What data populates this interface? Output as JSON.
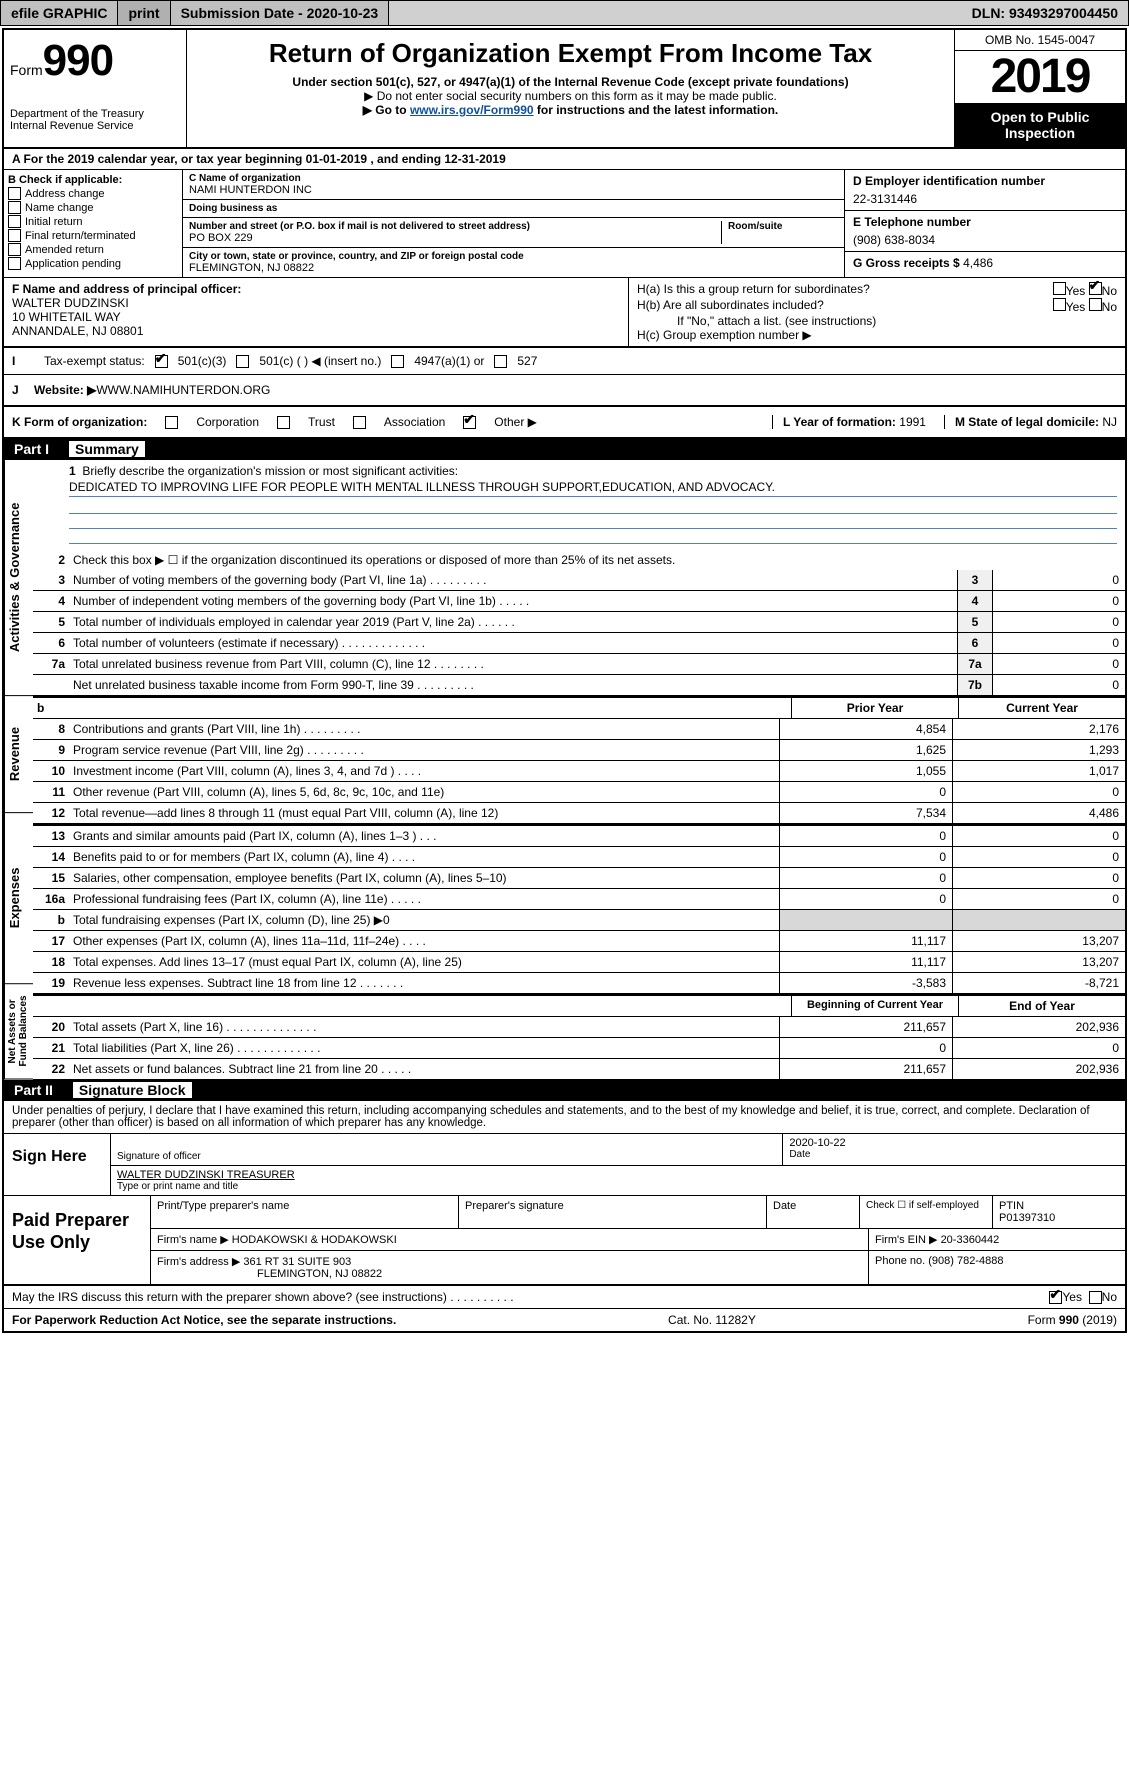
{
  "toolbar": {
    "efile": "efile GRAPHIC",
    "print": "print",
    "submission": "Submission Date - 2020-10-23",
    "dln": "DLN: 93493297004450"
  },
  "header": {
    "form_label": "Form",
    "form_num": "990",
    "dept": "Department of the Treasury",
    "irs": "Internal Revenue Service",
    "title": "Return of Organization Exempt From Income Tax",
    "sub1": "Under section 501(c), 527, or 4947(a)(1) of the Internal Revenue Code (except private foundations)",
    "sub2": "▶ Do not enter social security numbers on this form as it may be made public.",
    "sub3_pre": "▶ Go to ",
    "sub3_link": "www.irs.gov/Form990",
    "sub3_post": " for instructions and the latest information.",
    "omb": "OMB No. 1545-0047",
    "year": "2019",
    "open": "Open to Public Inspection"
  },
  "line_a": "A For the 2019 calendar year, or tax year beginning 01-01-2019    , and ending 12-31-2019",
  "block_b": {
    "label": "B Check if applicable:",
    "items": [
      "Address change",
      "Name change",
      "Initial return",
      "Final return/terminated",
      "Amended return",
      "Application pending"
    ]
  },
  "block_c": {
    "name_label": "C Name of organization",
    "name": "NAMI HUNTERDON INC",
    "dba_label": "Doing business as",
    "dba": "",
    "addr_label": "Number and street (or P.O. box if mail is not delivered to street address)",
    "room_label": "Room/suite",
    "addr": "PO BOX 229",
    "city_label": "City or town, state or province, country, and ZIP or foreign postal code",
    "city": "FLEMINGTON, NJ  08822"
  },
  "block_d": {
    "label": "D Employer identification number",
    "val": "22-3131446"
  },
  "block_e": {
    "label": "E Telephone number",
    "val": "(908) 638-8034"
  },
  "block_g": {
    "label": "G Gross receipts $",
    "val": "4,486"
  },
  "block_f": {
    "label": "F Name and address of principal officer:",
    "name": "WALTER DUDZINSKI",
    "addr1": "10 WHITETAIL WAY",
    "addr2": "ANNANDALE, NJ  08801"
  },
  "block_h": {
    "ha": "H(a)  Is this a group return for subordinates?",
    "hb": "H(b)  Are all subordinates included?",
    "hb_note": "If \"No,\" attach a list. (see instructions)",
    "hc": "H(c)  Group exemption number ▶",
    "yes": "Yes",
    "no": "No"
  },
  "line_i": {
    "label": "Tax-exempt status:",
    "opts": [
      "501(c)(3)",
      "501(c) (   ) ◀ (insert no.)",
      "4947(a)(1) or",
      "527"
    ]
  },
  "line_j": {
    "label": "J",
    "text": "Website: ▶  ",
    "val": "WWW.NAMIHUNTERDON.ORG"
  },
  "line_k": {
    "label": "K Form of organization:",
    "opts": [
      "Corporation",
      "Trust",
      "Association",
      "Other ▶"
    ],
    "l": "L Year of formation: ",
    "l_val": "1991",
    "m": "M State of legal domicile: ",
    "m_val": "NJ"
  },
  "parts": {
    "p1": "Part I",
    "p1_title": "Summary",
    "p2": "Part II",
    "p2_title": "Signature Block"
  },
  "vtabs": {
    "gov": "Activities & Governance",
    "rev": "Revenue",
    "exp": "Expenses",
    "net": "Net Assets or Fund Balances"
  },
  "q1": {
    "num": "1",
    "txt": "Briefly describe the organization's mission or most significant activities:",
    "mission": "DEDICATED TO IMPROVING LIFE FOR PEOPLE WITH MENTAL ILLNESS THROUGH SUPPORT,EDUCATION, AND ADVOCACY."
  },
  "q2": {
    "num": "2",
    "txt": "Check this box ▶ ☐  if the organization discontinued its operations or disposed of more than 25% of its net assets."
  },
  "lines_gov": [
    {
      "num": "3",
      "txt": "Number of voting members of the governing body (Part VI, line 1a)  .   .   .   .   .   .   .   .   .",
      "box": "3",
      "val": "0"
    },
    {
      "num": "4",
      "txt": "Number of independent voting members of the governing body (Part VI, line 1b)   .   .   .   .   .",
      "box": "4",
      "val": "0"
    },
    {
      "num": "5",
      "txt": "Total number of individuals employed in calendar year 2019 (Part V, line 2a)   .   .   .   .   .   .",
      "box": "5",
      "val": "0"
    },
    {
      "num": "6",
      "txt": "Total number of volunteers (estimate if necessary)   .   .   .   .   .   .   .   .   .   .   .   .   .",
      "box": "6",
      "val": "0"
    },
    {
      "num": "7a",
      "txt": "Total unrelated business revenue from Part VIII, column (C), line 12   .   .   .   .   .   .   .   .",
      "box": "7a",
      "val": "0"
    },
    {
      "num": "",
      "txt": "Net unrelated business taxable income from Form 990-T, line 39   .   .   .   .   .   .   .   .   .",
      "box": "7b",
      "val": "0"
    }
  ],
  "col_heads": {
    "b": "b",
    "prior": "Prior Year",
    "current": "Current Year",
    "boy": "Beginning of Current Year",
    "eoy": "End of Year"
  },
  "lines_rev": [
    {
      "num": "8",
      "txt": "Contributions and grants (Part VIII, line 1h)   .   .   .   .   .   .   .   .   .",
      "c1": "4,854",
      "c2": "2,176"
    },
    {
      "num": "9",
      "txt": "Program service revenue (Part VIII, line 2g)   .   .   .   .   .   .   .   .   .",
      "c1": "1,625",
      "c2": "1,293"
    },
    {
      "num": "10",
      "txt": "Investment income (Part VIII, column (A), lines 3, 4, and 7d )   .   .   .   .",
      "c1": "1,055",
      "c2": "1,017"
    },
    {
      "num": "11",
      "txt": "Other revenue (Part VIII, column (A), lines 5, 6d, 8c, 9c, 10c, and 11e)",
      "c1": "0",
      "c2": "0"
    },
    {
      "num": "12",
      "txt": "Total revenue—add lines 8 through 11 (must equal Part VIII, column (A), line 12)",
      "c1": "7,534",
      "c2": "4,486"
    }
  ],
  "lines_exp": [
    {
      "num": "13",
      "txt": "Grants and similar amounts paid (Part IX, column (A), lines 1–3 )   .   .   .",
      "c1": "0",
      "c2": "0"
    },
    {
      "num": "14",
      "txt": "Benefits paid to or for members (Part IX, column (A), line 4)   .   .   .   .",
      "c1": "0",
      "c2": "0"
    },
    {
      "num": "15",
      "txt": "Salaries, other compensation, employee benefits (Part IX, column (A), lines 5–10)",
      "c1": "0",
      "c2": "0"
    },
    {
      "num": "16a",
      "txt": "Professional fundraising fees (Part IX, column (A), line 11e)   .   .   .   .   .",
      "c1": "0",
      "c2": "0"
    },
    {
      "num": "b",
      "txt": "Total fundraising expenses (Part IX, column (D), line 25) ▶0",
      "c1": "",
      "c2": "",
      "shade": true
    },
    {
      "num": "17",
      "txt": "Other expenses (Part IX, column (A), lines 11a–11d, 11f–24e)   .   .   .   .",
      "c1": "11,117",
      "c2": "13,207"
    },
    {
      "num": "18",
      "txt": "Total expenses. Add lines 13–17 (must equal Part IX, column (A), line 25)",
      "c1": "11,117",
      "c2": "13,207"
    },
    {
      "num": "19",
      "txt": "Revenue less expenses. Subtract line 18 from line 12   .   .   .   .   .   .   .",
      "c1": "-3,583",
      "c2": "-8,721"
    }
  ],
  "lines_net": [
    {
      "num": "20",
      "txt": "Total assets (Part X, line 16)   .   .   .   .   .   .   .   .   .   .   .   .   .   .",
      "c1": "211,657",
      "c2": "202,936"
    },
    {
      "num": "21",
      "txt": "Total liabilities (Part X, line 26)   .   .   .   .   .   .   .   .   .   .   .   .   .",
      "c1": "0",
      "c2": "0"
    },
    {
      "num": "22",
      "txt": "Net assets or fund balances. Subtract line 21 from line 20   .   .   .   .   .",
      "c1": "211,657",
      "c2": "202,936"
    }
  ],
  "perjury": "Under penalties of perjury, I declare that I have examined this return, including accompanying schedules and statements, and to the best of my knowledge and belief, it is true, correct, and complete. Declaration of preparer (other than officer) is based on all information of which preparer has any knowledge.",
  "sign": {
    "here": "Sign Here",
    "sig_label": "Signature of officer",
    "date_label": "Date",
    "date": "2020-10-22",
    "name": "WALTER DUDZINSKI TREASURER",
    "name_label": "Type or print name and title"
  },
  "prep": {
    "title": "Paid Preparer Use Only",
    "h1": "Print/Type preparer's name",
    "h2": "Preparer's signature",
    "h3": "Date",
    "h4a": "Check ☐ if self-employed",
    "h4b": "PTIN",
    "ptin": "P01397310",
    "firm_label": "Firm's name      ▶",
    "firm": "HODAKOWSKI & HODAKOWSKI",
    "ein_label": "Firm's EIN ▶",
    "ein": "20-3360442",
    "addr_label": "Firm's address ▶",
    "addr1": "361 RT 31 SUITE 903",
    "addr2": "FLEMINGTON, NJ  08822",
    "phone_label": "Phone no.",
    "phone": "(908) 782-4888"
  },
  "discuss": {
    "txt": "May the IRS discuss this return with the preparer shown above? (see instructions)   .   .   .   .   .   .   .   .   .   .",
    "yes": "Yes",
    "no": "No"
  },
  "footer": {
    "left": "For Paperwork Reduction Act Notice, see the separate instructions.",
    "mid": "Cat. No. 11282Y",
    "right": "Form 990 (2019)"
  }
}
